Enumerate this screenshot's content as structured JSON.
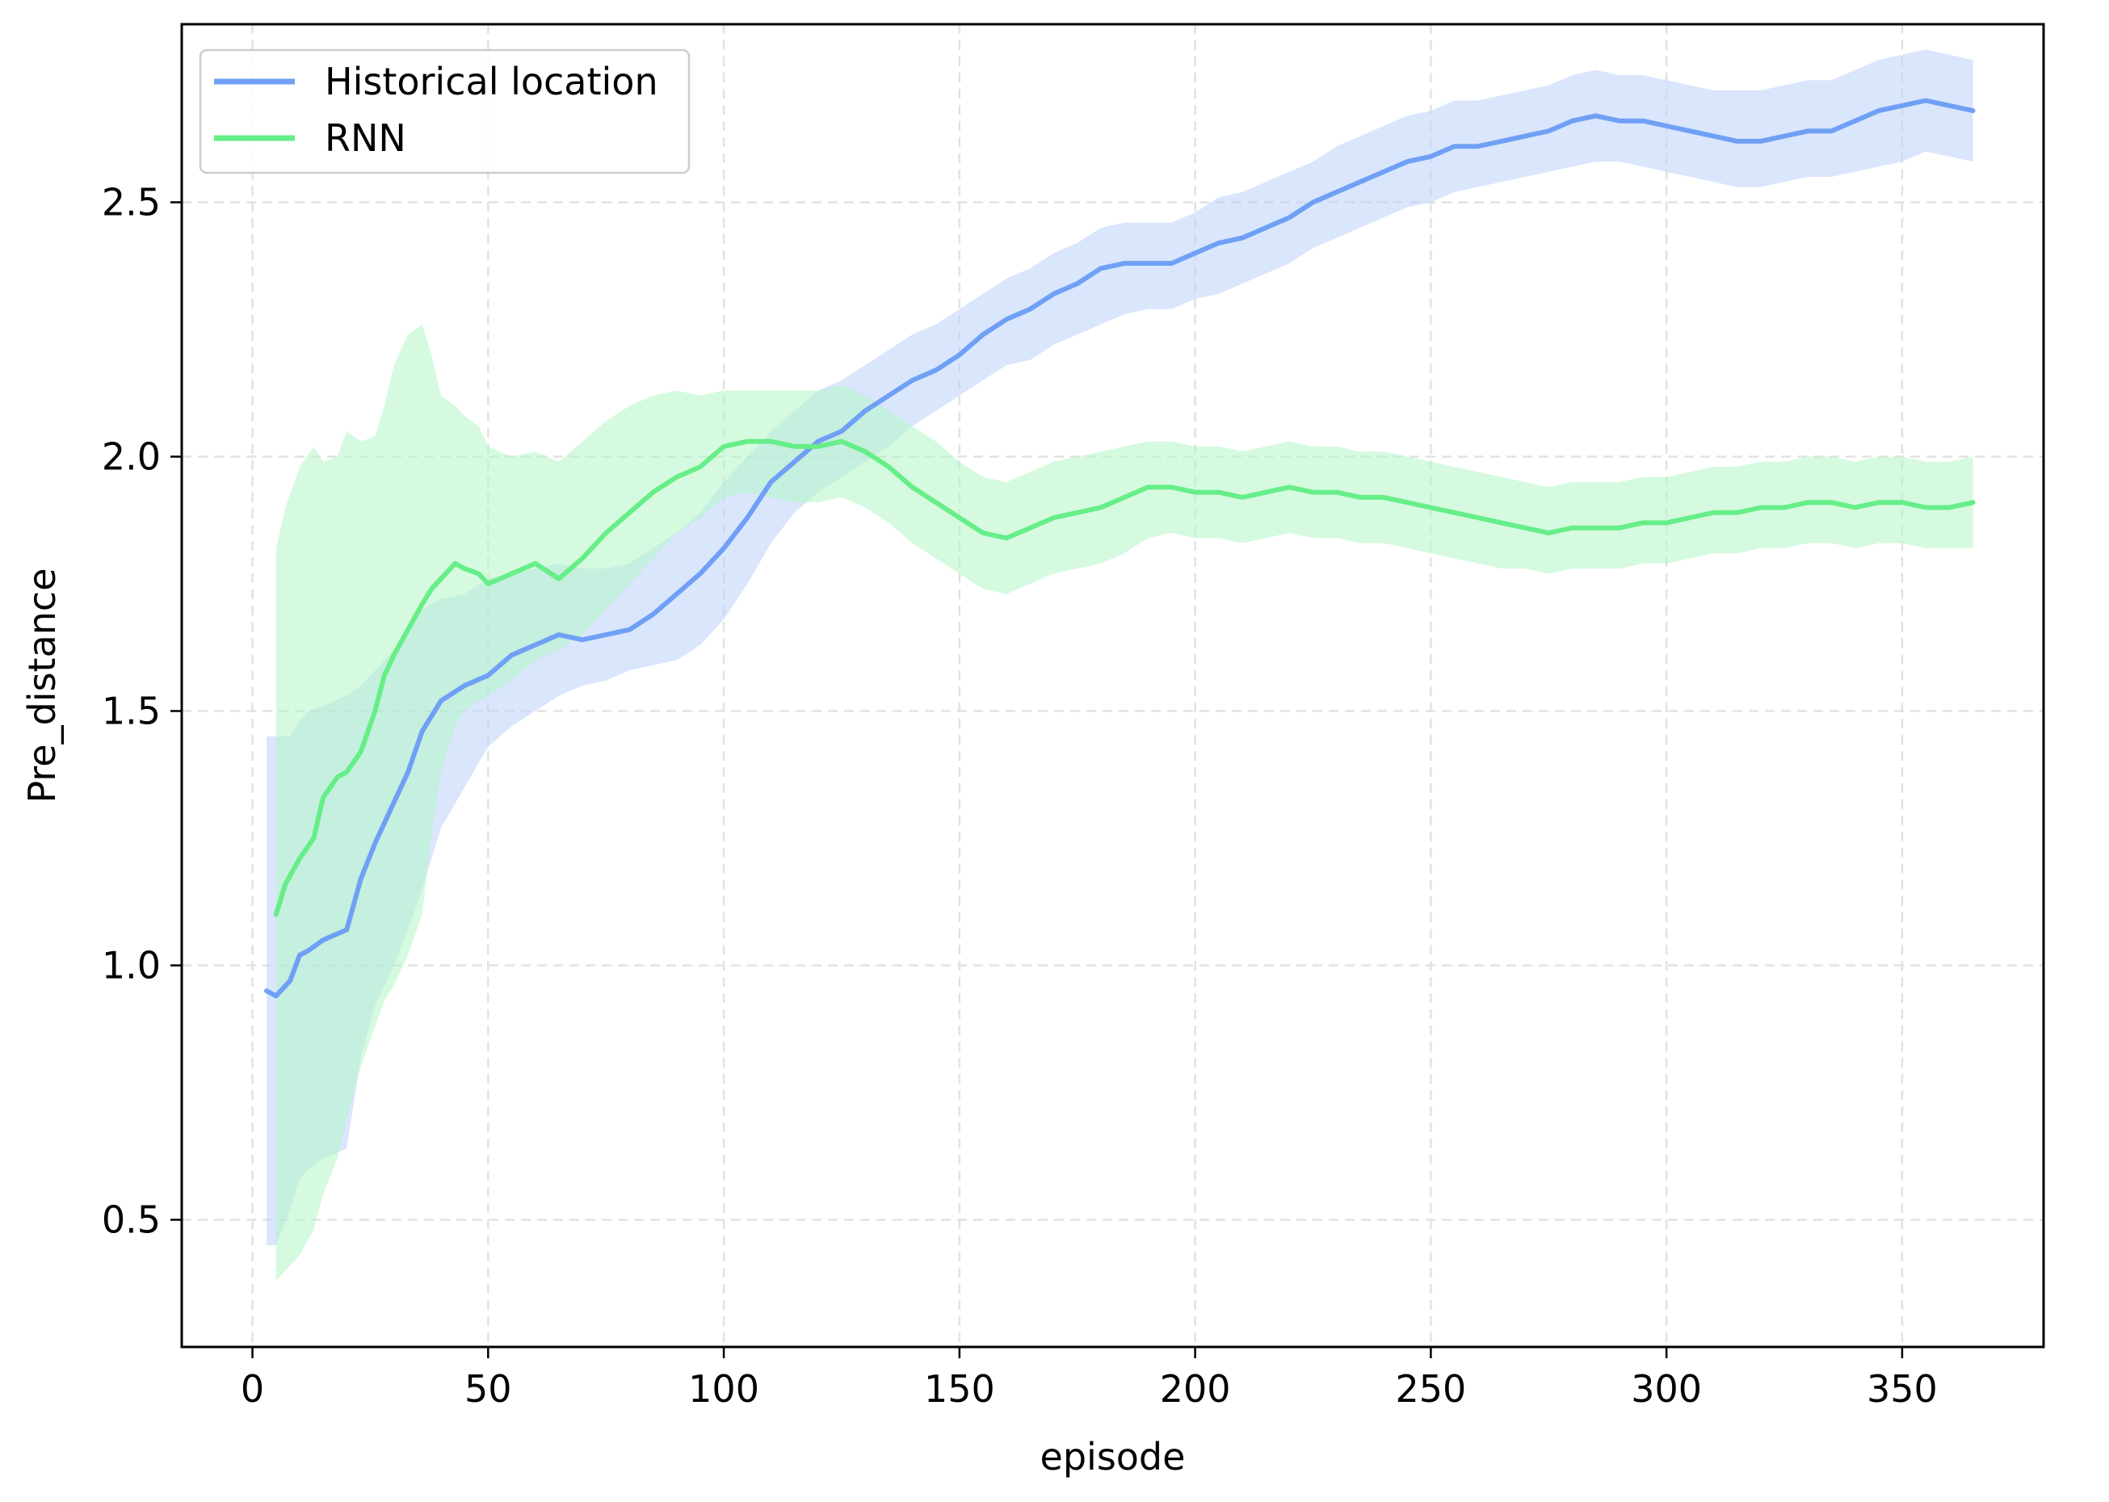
{
  "chart_data": {
    "type": "line",
    "title": "",
    "xlabel": "episode",
    "ylabel": "Pre_distance",
    "xlim": [
      -15,
      380
    ],
    "ylim": [
      0.25,
      2.85
    ],
    "xticks": [
      0,
      50,
      100,
      150,
      200,
      250,
      300,
      350
    ],
    "yticks": [
      0.5,
      1.0,
      1.5,
      2.0,
      2.5
    ],
    "xtick_labels": [
      "0",
      "50",
      "100",
      "150",
      "200",
      "250",
      "300",
      "350"
    ],
    "ytick_labels": [
      "0.5",
      "1.0",
      "1.5",
      "2.0",
      "2.5"
    ],
    "grid": true,
    "legend_position": "upper-left",
    "series": [
      {
        "name": "Historical location",
        "color": "#6fa0f5",
        "band_color": "#bcd2fa",
        "x": [
          3,
          5,
          8,
          10,
          12,
          15,
          20,
          23,
          26,
          30,
          33,
          36,
          40,
          45,
          50,
          55,
          60,
          65,
          70,
          75,
          80,
          85,
          90,
          95,
          100,
          105,
          110,
          115,
          120,
          125,
          130,
          135,
          140,
          145,
          150,
          155,
          160,
          165,
          170,
          175,
          180,
          185,
          190,
          195,
          200,
          205,
          210,
          215,
          220,
          225,
          230,
          235,
          240,
          245,
          250,
          255,
          260,
          265,
          270,
          275,
          280,
          285,
          290,
          295,
          300,
          305,
          310,
          315,
          320,
          325,
          330,
          335,
          340,
          345,
          350,
          355,
          360,
          365
        ],
        "y": [
          0.95,
          0.94,
          0.97,
          1.02,
          1.03,
          1.05,
          1.07,
          1.17,
          1.24,
          1.32,
          1.38,
          1.46,
          1.52,
          1.55,
          1.57,
          1.61,
          1.63,
          1.65,
          1.64,
          1.65,
          1.66,
          1.69,
          1.73,
          1.77,
          1.82,
          1.88,
          1.95,
          1.99,
          2.03,
          2.05,
          2.09,
          2.12,
          2.15,
          2.17,
          2.2,
          2.24,
          2.27,
          2.29,
          2.32,
          2.34,
          2.37,
          2.38,
          2.38,
          2.38,
          2.4,
          2.42,
          2.43,
          2.45,
          2.47,
          2.5,
          2.52,
          2.54,
          2.56,
          2.58,
          2.59,
          2.61,
          2.61,
          2.62,
          2.63,
          2.64,
          2.66,
          2.67,
          2.66,
          2.66,
          2.65,
          2.64,
          2.63,
          2.62,
          2.62,
          2.63,
          2.64,
          2.64,
          2.66,
          2.68,
          2.69,
          2.7,
          2.69,
          2.68
        ],
        "lower": [
          0.45,
          0.45,
          0.52,
          0.58,
          0.6,
          0.62,
          0.64,
          0.82,
          0.92,
          1.0,
          1.07,
          1.15,
          1.27,
          1.35,
          1.43,
          1.47,
          1.5,
          1.53,
          1.55,
          1.56,
          1.58,
          1.59,
          1.6,
          1.63,
          1.68,
          1.75,
          1.83,
          1.89,
          1.93,
          1.96,
          1.99,
          2.02,
          2.06,
          2.09,
          2.12,
          2.15,
          2.18,
          2.19,
          2.22,
          2.24,
          2.26,
          2.28,
          2.29,
          2.29,
          2.31,
          2.32,
          2.34,
          2.36,
          2.38,
          2.41,
          2.43,
          2.45,
          2.47,
          2.49,
          2.5,
          2.52,
          2.53,
          2.54,
          2.55,
          2.56,
          2.57,
          2.58,
          2.58,
          2.57,
          2.56,
          2.55,
          2.54,
          2.53,
          2.53,
          2.54,
          2.55,
          2.55,
          2.56,
          2.57,
          2.58,
          2.6,
          2.59,
          2.58
        ],
        "upper": [
          1.45,
          1.45,
          1.45,
          1.48,
          1.5,
          1.51,
          1.53,
          1.55,
          1.58,
          1.62,
          1.65,
          1.7,
          1.72,
          1.73,
          1.76,
          1.77,
          1.78,
          1.79,
          1.78,
          1.78,
          1.79,
          1.82,
          1.85,
          1.89,
          1.95,
          2.0,
          2.05,
          2.09,
          2.13,
          2.15,
          2.18,
          2.21,
          2.24,
          2.26,
          2.29,
          2.32,
          2.35,
          2.37,
          2.4,
          2.42,
          2.45,
          2.46,
          2.46,
          2.46,
          2.48,
          2.51,
          2.52,
          2.54,
          2.56,
          2.58,
          2.61,
          2.63,
          2.65,
          2.67,
          2.68,
          2.7,
          2.7,
          2.71,
          2.72,
          2.73,
          2.75,
          2.76,
          2.75,
          2.75,
          2.74,
          2.73,
          2.72,
          2.72,
          2.72,
          2.73,
          2.74,
          2.74,
          2.76,
          2.78,
          2.79,
          2.8,
          2.79,
          2.78
        ]
      },
      {
        "name": "RNN",
        "color": "#66ee88",
        "band_color": "#b4f5c4",
        "x": [
          5,
          7,
          10,
          13,
          15,
          18,
          20,
          23,
          26,
          28,
          30,
          33,
          36,
          38,
          40,
          43,
          45,
          48,
          50,
          55,
          60,
          65,
          70,
          75,
          80,
          85,
          90,
          95,
          100,
          105,
          110,
          115,
          120,
          125,
          130,
          135,
          140,
          145,
          150,
          155,
          160,
          165,
          170,
          175,
          180,
          185,
          190,
          195,
          200,
          205,
          210,
          215,
          220,
          225,
          230,
          235,
          240,
          245,
          250,
          255,
          260,
          265,
          270,
          275,
          280,
          285,
          290,
          295,
          300,
          305,
          310,
          315,
          320,
          325,
          330,
          335,
          340,
          345,
          350,
          355,
          360,
          365
        ],
        "y": [
          1.1,
          1.16,
          1.21,
          1.25,
          1.33,
          1.37,
          1.38,
          1.42,
          1.5,
          1.57,
          1.61,
          1.66,
          1.71,
          1.74,
          1.76,
          1.79,
          1.78,
          1.77,
          1.75,
          1.77,
          1.79,
          1.76,
          1.8,
          1.85,
          1.89,
          1.93,
          1.96,
          1.98,
          2.02,
          2.03,
          2.03,
          2.02,
          2.02,
          2.03,
          2.01,
          1.98,
          1.94,
          1.91,
          1.88,
          1.85,
          1.84,
          1.86,
          1.88,
          1.89,
          1.9,
          1.92,
          1.94,
          1.94,
          1.93,
          1.93,
          1.92,
          1.93,
          1.94,
          1.93,
          1.93,
          1.92,
          1.92,
          1.91,
          1.9,
          1.89,
          1.88,
          1.87,
          1.86,
          1.85,
          1.86,
          1.86,
          1.86,
          1.87,
          1.87,
          1.88,
          1.89,
          1.89,
          1.9,
          1.9,
          1.91,
          1.91,
          1.9,
          1.91,
          1.91,
          1.9,
          1.9,
          1.91
        ],
        "lower": [
          0.38,
          0.4,
          0.43,
          0.48,
          0.55,
          0.62,
          0.7,
          0.8,
          0.88,
          0.93,
          0.96,
          1.02,
          1.1,
          1.26,
          1.38,
          1.47,
          1.5,
          1.52,
          1.53,
          1.56,
          1.6,
          1.62,
          1.65,
          1.7,
          1.75,
          1.8,
          1.85,
          1.88,
          1.92,
          1.93,
          1.92,
          1.91,
          1.91,
          1.92,
          1.9,
          1.87,
          1.83,
          1.8,
          1.77,
          1.74,
          1.73,
          1.75,
          1.77,
          1.78,
          1.79,
          1.81,
          1.84,
          1.85,
          1.84,
          1.84,
          1.83,
          1.84,
          1.85,
          1.84,
          1.84,
          1.83,
          1.83,
          1.82,
          1.81,
          1.8,
          1.79,
          1.78,
          1.78,
          1.77,
          1.78,
          1.78,
          1.78,
          1.79,
          1.79,
          1.8,
          1.81,
          1.81,
          1.82,
          1.82,
          1.83,
          1.83,
          1.82,
          1.83,
          1.83,
          1.82,
          1.82,
          1.82
        ],
        "upper": [
          1.82,
          1.9,
          1.98,
          2.02,
          1.99,
          2.0,
          2.05,
          2.03,
          2.04,
          2.1,
          2.18,
          2.24,
          2.26,
          2.2,
          2.12,
          2.1,
          2.08,
          2.06,
          2.02,
          2.0,
          2.01,
          1.99,
          2.03,
          2.07,
          2.1,
          2.12,
          2.13,
          2.12,
          2.13,
          2.13,
          2.13,
          2.13,
          2.13,
          2.14,
          2.12,
          2.09,
          2.06,
          2.03,
          1.99,
          1.96,
          1.95,
          1.97,
          1.99,
          2.0,
          2.01,
          2.02,
          2.03,
          2.03,
          2.02,
          2.02,
          2.01,
          2.02,
          2.03,
          2.02,
          2.02,
          2.01,
          2.01,
          2.0,
          1.99,
          1.98,
          1.97,
          1.96,
          1.95,
          1.94,
          1.95,
          1.95,
          1.95,
          1.96,
          1.96,
          1.97,
          1.98,
          1.98,
          1.99,
          1.99,
          2.0,
          2.0,
          1.99,
          2.0,
          2.0,
          1.99,
          1.99,
          2.0
        ]
      }
    ]
  }
}
